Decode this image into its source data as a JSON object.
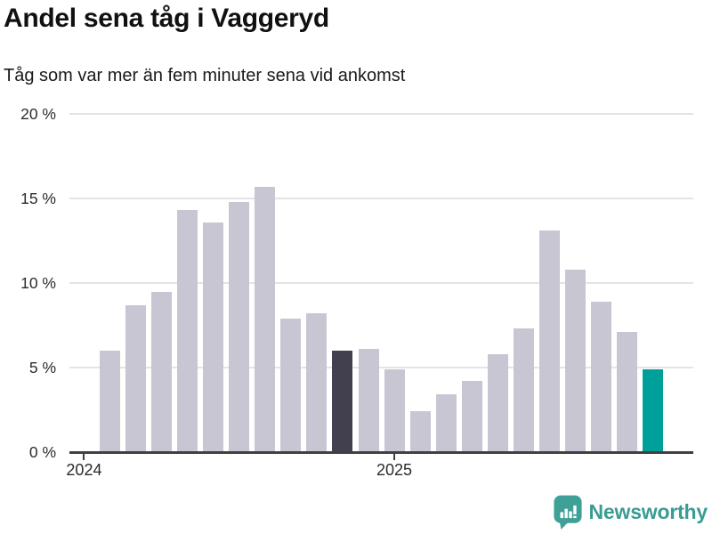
{
  "header": {
    "title": "Andel sena tåg i Vaggeryd",
    "subtitle": "Tåg som var mer än fem minuter sena vid ankomst"
  },
  "chart_data": {
    "type": "bar",
    "title": "Andel sena tåg i Vaggeryd",
    "subtitle": "Tåg som var mer än fem minuter sena vid ankomst",
    "unit": "%",
    "months": [
      "2024-02",
      "2024-03",
      "2024-04",
      "2024-05",
      "2024-06",
      "2024-07",
      "2024-08",
      "2024-09",
      "2024-10",
      "2024-11",
      "2024-12",
      "2025-01",
      "2025-02",
      "2025-03",
      "2025-04",
      "2025-05",
      "2025-06",
      "2025-07",
      "2025-08",
      "2025-09",
      "2025-10",
      "2025-11"
    ],
    "values": [
      6.0,
      8.7,
      9.5,
      14.3,
      13.6,
      14.8,
      15.7,
      7.9,
      8.2,
      6.0,
      6.1,
      4.9,
      2.4,
      3.4,
      4.2,
      5.8,
      7.3,
      13.1,
      10.8,
      8.9,
      7.1,
      4.9
    ],
    "ylim": [
      0,
      20
    ],
    "yticks": [
      {
        "value": 0,
        "label": "0 %"
      },
      {
        "value": 5,
        "label": "5 %"
      },
      {
        "value": 10,
        "label": "10 %"
      },
      {
        "value": 15,
        "label": "15 %"
      },
      {
        "value": 20,
        "label": "20 %"
      }
    ],
    "xticks": [
      {
        "label": "2024",
        "month_index": -1
      },
      {
        "label": "2025",
        "month_index": 11
      }
    ],
    "grid": true,
    "legend": "none",
    "highlight_dark_index": 9,
    "highlight_teal_index": 21,
    "colors": {
      "bar": "#c9c6d3",
      "bar_dark": "#42404e",
      "bar_teal": "#00a09a",
      "grid": "#e4e4e6",
      "axis": "#404040",
      "text": "#2b2b2b"
    }
  },
  "footer": {
    "brand": "Newsworthy",
    "brand_color": "#3b9c94"
  }
}
